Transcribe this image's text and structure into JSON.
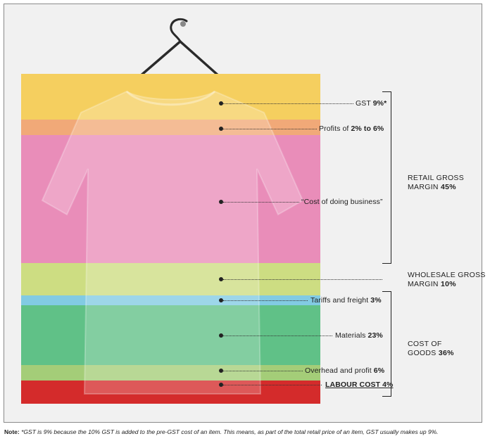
{
  "colors": {
    "gst": "#f5cf5f",
    "profits": "#f1a978",
    "business": "#e98db9",
    "wholesale": "#cddd82",
    "tariffs": "#82cbe3",
    "materials": "#60c187",
    "overhead": "#a4cd78",
    "labour": "#d42b2b"
  },
  "labels": {
    "gst": {
      "text": "GST",
      "value": "9%*"
    },
    "profits": {
      "text": "Profits of",
      "value": "2% to 6%"
    },
    "business": {
      "text": "“Cost of doing business”"
    },
    "tariffs": {
      "text": "Tariffs and freight",
      "value": "3%"
    },
    "materials": {
      "text": "Materials",
      "value": "23%"
    },
    "overhead": {
      "text": "Overhead and profit",
      "value": "6%"
    },
    "labour": {
      "text": "LABOUR COST 4%"
    }
  },
  "groups": {
    "retail": {
      "line1": "RETAIL GROSS",
      "line2": "MARGIN",
      "value": "45%"
    },
    "wholesale": {
      "line1": "WHOLESALE GROSS",
      "line2": "MARGIN",
      "value": "10%"
    },
    "cost": {
      "line1": "COST OF",
      "line2": "GOODS",
      "value": "36%"
    }
  },
  "note": {
    "prefix": "Note:",
    "text": "*GST is 9% because the 10% GST is added to the pre-GST cost of an item. This means, as part of the total retail price of an item, GST usually makes up 9%."
  }
}
